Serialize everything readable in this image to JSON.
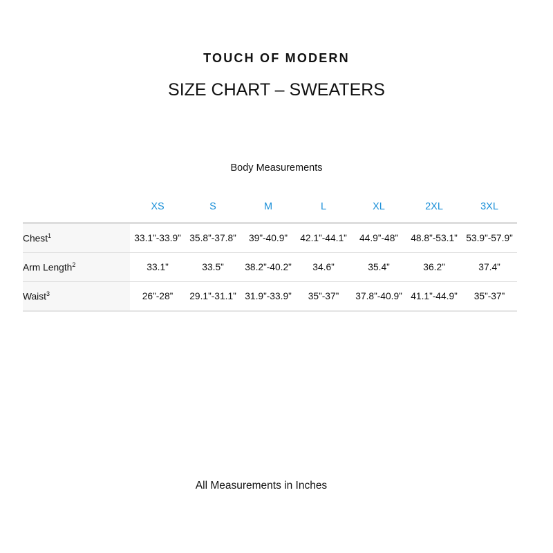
{
  "brand": "TOUCH OF MODERN",
  "title": "SIZE CHART – SWEATERS",
  "subtitle": "Body Measurements",
  "sizes": [
    "XS",
    "S",
    "M",
    "L",
    "XL",
    "2XL",
    "3XL"
  ],
  "rows": [
    {
      "label": "Chest",
      "note": "1",
      "values": [
        "33.1”-33.9”",
        "35.8”-37.8”",
        "39”-40.9”",
        "42.1”-44.1”",
        "44.9”-48”",
        "48.8”-53.1”",
        "53.9”-57.9”"
      ]
    },
    {
      "label": "Arm Length",
      "note": "2",
      "values": [
        "33.1”",
        "33.5”",
        "38.2”-40.2”",
        "34.6”",
        "35.4”",
        "36.2”",
        "37.4”"
      ]
    },
    {
      "label": "Waist",
      "note": "3",
      "values": [
        "26”-28”",
        "29.1”-31.1”",
        "31.9”-33.9”",
        "35”-37”",
        "37.8”-40.9”",
        "41.1”-44.9”",
        "35”-37”"
      ]
    }
  ],
  "footer": "All Measurements in Inches",
  "colors": {
    "size_header": "#1a8fd8"
  }
}
